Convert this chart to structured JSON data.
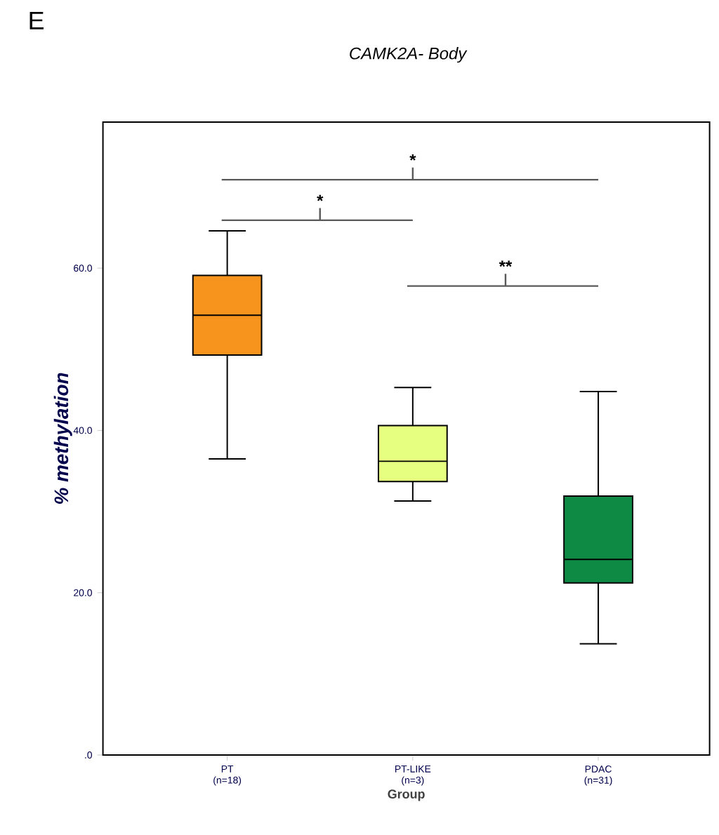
{
  "chart_data": {
    "type": "box",
    "title": "CAMK2A- Body",
    "xlabel": "Group",
    "ylabel": "% methylation",
    "categories": [
      "PT (n=18)",
      "PT-LIKE (n=3)",
      "PDAC (n=31)"
    ],
    "colors": [
      "#f7941d",
      "#e6ff80",
      "#0f8a45"
    ],
    "boxes": [
      {
        "low": 36.5,
        "q1": 49.3,
        "median": 54.2,
        "q3": 59.1,
        "high": 64.6
      },
      {
        "low": 31.3,
        "q1": 33.7,
        "median": 36.2,
        "q3": 40.6,
        "high": 45.3
      },
      {
        "low": 13.7,
        "q1": 21.2,
        "median": 24.1,
        "q3": 31.9,
        "high": 44.8
      }
    ],
    "ylim": [
      0,
      78
    ],
    "yticks": [
      {
        "value": 0,
        "label": ".0"
      },
      {
        "value": 20,
        "label": "20.0"
      },
      {
        "value": 40,
        "label": "40.0"
      },
      {
        "value": 60,
        "label": "60.0"
      }
    ],
    "annotations": [
      "E",
      "*",
      "*",
      "**"
    ],
    "grid": false
  }
}
